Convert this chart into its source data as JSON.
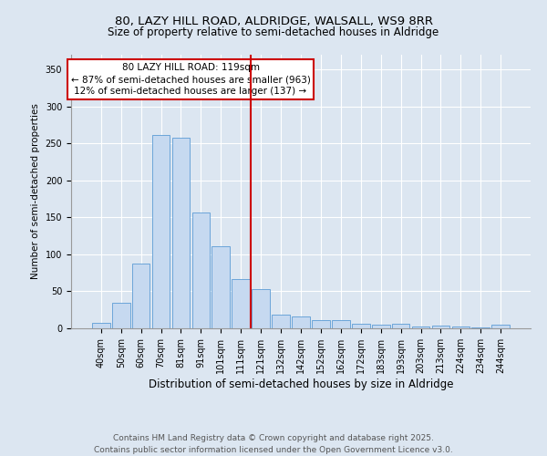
{
  "title1": "80, LAZY HILL ROAD, ALDRIDGE, WALSALL, WS9 8RR",
  "title2": "Size of property relative to semi-detached houses in Aldridge",
  "xlabel": "Distribution of semi-detached houses by size in Aldridge",
  "ylabel": "Number of semi-detached properties",
  "categories": [
    "40sqm",
    "50sqm",
    "60sqm",
    "70sqm",
    "81sqm",
    "91sqm",
    "101sqm",
    "111sqm",
    "121sqm",
    "132sqm",
    "142sqm",
    "152sqm",
    "162sqm",
    "172sqm",
    "183sqm",
    "193sqm",
    "203sqm",
    "213sqm",
    "224sqm",
    "234sqm",
    "244sqm"
  ],
  "values": [
    8,
    35,
    88,
    262,
    258,
    157,
    111,
    66,
    53,
    19,
    16,
    11,
    11,
    6,
    5,
    6,
    3,
    4,
    2,
    1,
    5
  ],
  "bar_color": "#c6d9f0",
  "bar_edge_color": "#5b9bd5",
  "red_line_index": 8,
  "red_line_color": "#cc0000",
  "annotation_title": "80 LAZY HILL ROAD: 119sqm",
  "annotation_line1": "← 87% of semi-detached houses are smaller (963)",
  "annotation_line2": "12% of semi-detached houses are larger (137) →",
  "annotation_box_color": "#cc0000",
  "ylim": [
    0,
    370
  ],
  "yticks": [
    0,
    50,
    100,
    150,
    200,
    250,
    300,
    350
  ],
  "background_color": "#dce6f1",
  "plot_bg_color": "#dce6f1",
  "footer1": "Contains HM Land Registry data © Crown copyright and database right 2025.",
  "footer2": "Contains public sector information licensed under the Open Government Licence v3.0.",
  "title_fontsize": 9.5,
  "subtitle_fontsize": 8.5,
  "xlabel_fontsize": 8.5,
  "ylabel_fontsize": 7.5,
  "tick_fontsize": 7,
  "annotation_fontsize": 7.5,
  "footer_fontsize": 6.5
}
